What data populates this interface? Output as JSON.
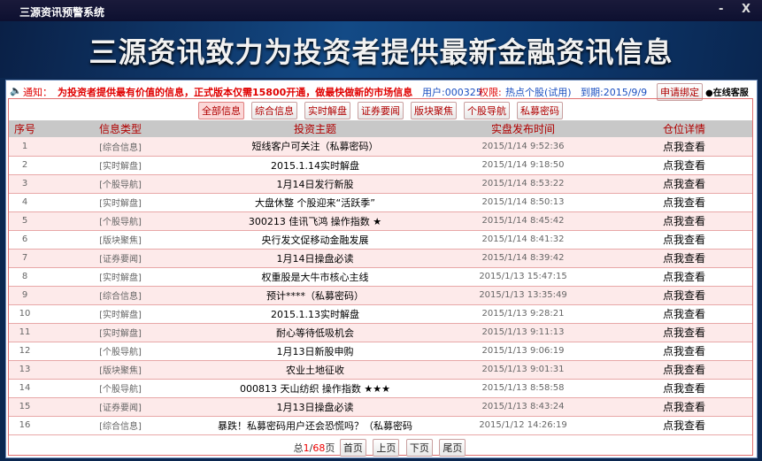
{
  "window": {
    "title": "三源资讯预警系统",
    "minimize": "-",
    "close": "X"
  },
  "banner": "三源资讯致力为投资者提供最新金融资讯信息",
  "notice": {
    "label": "通知：",
    "text": "为投资者提供最有价值的信息，正式版本仅需15800开通，做最快做新的市场信息",
    "user": "用户:000325",
    "perm_label": "权限:",
    "perm_value": "热点个股(试用)",
    "expire": "到期:2015/9/9",
    "bind": "申请绑定",
    "support": "在线客服"
  },
  "filters": [
    "全部信息",
    "综合信息",
    "实时解盘",
    "证券要闻",
    "版块聚焦",
    "个股导航",
    "私募密码"
  ],
  "columns": [
    "序号",
    "信息类型",
    "投资主题",
    "实盘发布时间",
    "仓位详情"
  ],
  "rows": [
    [
      "1",
      "[综合信息]",
      "短线客户可关注（私募密码）",
      "2015/1/14 9:52:36",
      "点我查看"
    ],
    [
      "2",
      "[实时解盘]",
      "2015.1.14实时解盘",
      "2015/1/14 9:18:50",
      "点我查看"
    ],
    [
      "3",
      "[个股导航]",
      "1月14日发行新股",
      "2015/1/14 8:53:22",
      "点我查看"
    ],
    [
      "4",
      "[实时解盘]",
      "大盘休整 个股迎来“活跃季”",
      "2015/1/14 8:50:13",
      "点我查看"
    ],
    [
      "5",
      "[个股导航]",
      "300213 佳讯飞鸿 操作指数 ★",
      "2015/1/14 8:45:42",
      "点我查看"
    ],
    [
      "6",
      "[版块聚焦]",
      "央行发文促移动金融发展",
      "2015/1/14 8:41:32",
      "点我查看"
    ],
    [
      "7",
      "[证券要闻]",
      "1月14日操盘必读",
      "2015/1/14 8:39:42",
      "点我查看"
    ],
    [
      "8",
      "[实时解盘]",
      "权重股是大牛市核心主线",
      "2015/1/13 15:47:15",
      "点我查看"
    ],
    [
      "9",
      "[综合信息]",
      "预计****（私募密码）",
      "2015/1/13 13:35:49",
      "点我查看"
    ],
    [
      "10",
      "[实时解盘]",
      "2015.1.13实时解盘",
      "2015/1/13 9:28:21",
      "点我查看"
    ],
    [
      "11",
      "[实时解盘]",
      "耐心等待低吸机会",
      "2015/1/13 9:11:13",
      "点我查看"
    ],
    [
      "12",
      "[个股导航]",
      "1月13日新股申购",
      "2015/1/13 9:06:19",
      "点我查看"
    ],
    [
      "13",
      "[版块聚焦]",
      "农业土地征收",
      "2015/1/13 9:01:31",
      "点我查看"
    ],
    [
      "14",
      "[个股导航]",
      "000813 天山纺织 操作指数 ★★★",
      "2015/1/13 8:58:58",
      "点我查看"
    ],
    [
      "15",
      "[证券要闻]",
      "1月13日操盘必读",
      "2015/1/13 8:43:24",
      "点我查看"
    ],
    [
      "16",
      "[综合信息]",
      "暴跌！私募密码用户还会恐慌吗？（私募密码",
      "2015/1/12 14:26:19",
      "点我查看"
    ]
  ],
  "pager": {
    "prefix": "总",
    "current": "1",
    "sep": "/",
    "total": "68",
    "suffix": "页",
    "first": "首页",
    "prev": "上页",
    "next": "下页",
    "last": "尾页"
  }
}
